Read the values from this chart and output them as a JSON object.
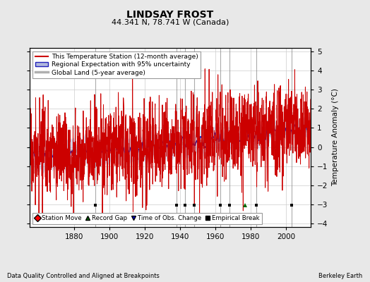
{
  "title": "LINDSAY FROST",
  "subtitle": "44.341 N, 78.741 W (Canada)",
  "xlabel_left": "Data Quality Controlled and Aligned at Breakpoints",
  "xlabel_right": "Berkeley Earth",
  "ylabel": "Temperature Anomaly (°C)",
  "xlim": [
    1855,
    2014
  ],
  "ylim": [
    -4.2,
    5.2
  ],
  "yticks": [
    -4,
    -3,
    -2,
    -1,
    0,
    1,
    2,
    3,
    4,
    5
  ],
  "xticks": [
    1880,
    1900,
    1920,
    1940,
    1960,
    1980,
    2000
  ],
  "background_color": "#e8e8e8",
  "plot_bg_color": "#ffffff",
  "grid_color": "#cccccc",
  "station_line_color": "#cc0000",
  "regional_line_color": "#2222bb",
  "regional_fill_color": "#b0b8dd",
  "global_line_color": "#b0b0b0",
  "seed": 17,
  "start_year": 1855,
  "end_year": 2014,
  "empirical_breaks": [
    1892,
    1938,
    1943,
    1948,
    1963,
    1968,
    1983,
    2003
  ],
  "station_moves": [],
  "record_gaps": [
    1977
  ],
  "tobs_changes": [],
  "break_line_color": "#888888",
  "marker_y": -3.05
}
